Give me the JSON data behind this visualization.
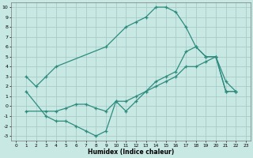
{
  "xlabel": "Humidex (Indice chaleur)",
  "xlim": [
    -0.5,
    23.5
  ],
  "ylim": [
    -3.5,
    10.5
  ],
  "xticks": [
    0,
    1,
    2,
    3,
    4,
    5,
    6,
    7,
    8,
    9,
    10,
    11,
    12,
    13,
    14,
    15,
    16,
    17,
    18,
    19,
    20,
    21,
    22,
    23
  ],
  "yticks": [
    -3,
    -2,
    -1,
    0,
    1,
    2,
    3,
    4,
    5,
    6,
    7,
    8,
    9,
    10
  ],
  "line_color": "#2d8c7e",
  "bg_color": "#c8e8e4",
  "grid_color": "#a8ccc8",
  "line1_x": [
    1,
    2,
    3,
    4,
    9,
    11,
    12,
    13,
    14,
    15,
    16,
    17,
    18,
    19,
    20,
    21,
    22
  ],
  "line1_y": [
    3,
    2,
    3,
    4,
    6,
    8,
    8.5,
    9,
    10,
    10,
    9.5,
    8,
    6,
    5,
    5,
    2.5,
    1.5
  ],
  "line2_x": [
    1,
    3,
    4,
    5,
    6,
    7,
    8,
    9,
    10,
    11,
    12,
    13,
    14,
    15,
    16,
    17,
    18,
    19,
    20,
    21,
    22
  ],
  "line2_y": [
    1.5,
    -1,
    -1.5,
    -1.5,
    -2,
    -2.5,
    -3,
    -2.5,
    0.5,
    -0.5,
    0.5,
    1.5,
    2.5,
    3,
    3.5,
    5.5,
    6,
    5,
    5,
    1.5,
    1.5
  ],
  "line3_x": [
    1,
    3,
    4,
    5,
    6,
    7,
    8,
    9,
    10,
    11,
    12,
    13,
    14,
    15,
    16,
    17,
    18,
    19,
    20,
    21,
    22
  ],
  "line3_y": [
    -0.5,
    -0.5,
    -0.5,
    -0.2,
    0.2,
    0.2,
    -0.2,
    -0.5,
    0.5,
    0.5,
    1,
    1.5,
    2,
    2.5,
    3,
    4,
    4,
    4.5,
    5,
    1.5,
    1.5
  ]
}
